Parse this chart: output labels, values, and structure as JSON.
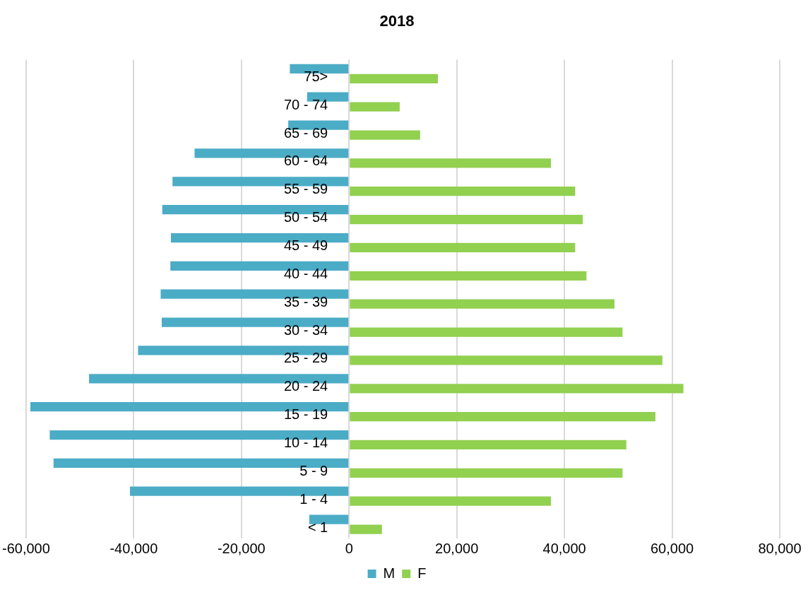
{
  "chart_data": {
    "type": "bar",
    "orientation": "horizontal",
    "title": "2018",
    "categories": [
      "75>",
      "70 - 74",
      "65 - 69",
      "60 - 64",
      "55 - 59",
      "50 - 54",
      "45 - 49",
      "40 - 44",
      "35 - 39",
      "30 - 34",
      "25 - 29",
      "20 - 24",
      "15 - 19",
      "10 - 14",
      "5 - 9",
      "1 - 4",
      "< 1"
    ],
    "series": [
      {
        "name": "M",
        "color": "#4bacc6",
        "values": [
          -11000,
          -7800,
          -11300,
          -28700,
          -32800,
          -34700,
          -33100,
          -33200,
          -35000,
          -34800,
          -39200,
          -48300,
          -59200,
          -55600,
          -54900,
          -40700,
          -7400
        ]
      },
      {
        "name": "F",
        "color": "#92d050",
        "values": [
          16500,
          9400,
          13200,
          37500,
          42000,
          43400,
          42000,
          44100,
          49300,
          50800,
          58200,
          62100,
          56900,
          51500,
          50800,
          37500,
          6100
        ]
      }
    ],
    "xlim": [
      -60000,
      80000
    ],
    "xticks": [
      {
        "value": -60000,
        "label": "-60,000"
      },
      {
        "value": -40000,
        "label": "-40,000"
      },
      {
        "value": -20000,
        "label": "-20,000"
      },
      0,
      {
        "value": 20000,
        "label": "20,000"
      },
      {
        "value": 40000,
        "label": "40,000"
      },
      {
        "value": 60000,
        "label": "60,000"
      },
      {
        "value": 80000,
        "label": "80,000"
      }
    ],
    "grid": "x",
    "legend": "bottom"
  }
}
